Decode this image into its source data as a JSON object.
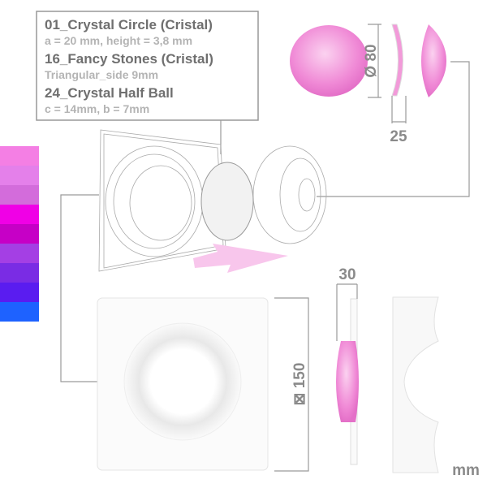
{
  "spec_box": {
    "items": [
      {
        "name": "01_Crystal Circle (Cristal)",
        "detail": "a = 20 mm, height = 3,8 mm"
      },
      {
        "name": "16_Fancy Stones (Cristal)",
        "detail": "Triangular_side 9mm"
      },
      {
        "name": "24_Crystal Half Ball",
        "detail": "c = 14mm, b = 7mm"
      }
    ]
  },
  "dimensions": {
    "diameter": "Ø 80",
    "thickness": "25",
    "plate_depth": "30",
    "plate_size": "⊠ 150"
  },
  "unit": "mm"
}
